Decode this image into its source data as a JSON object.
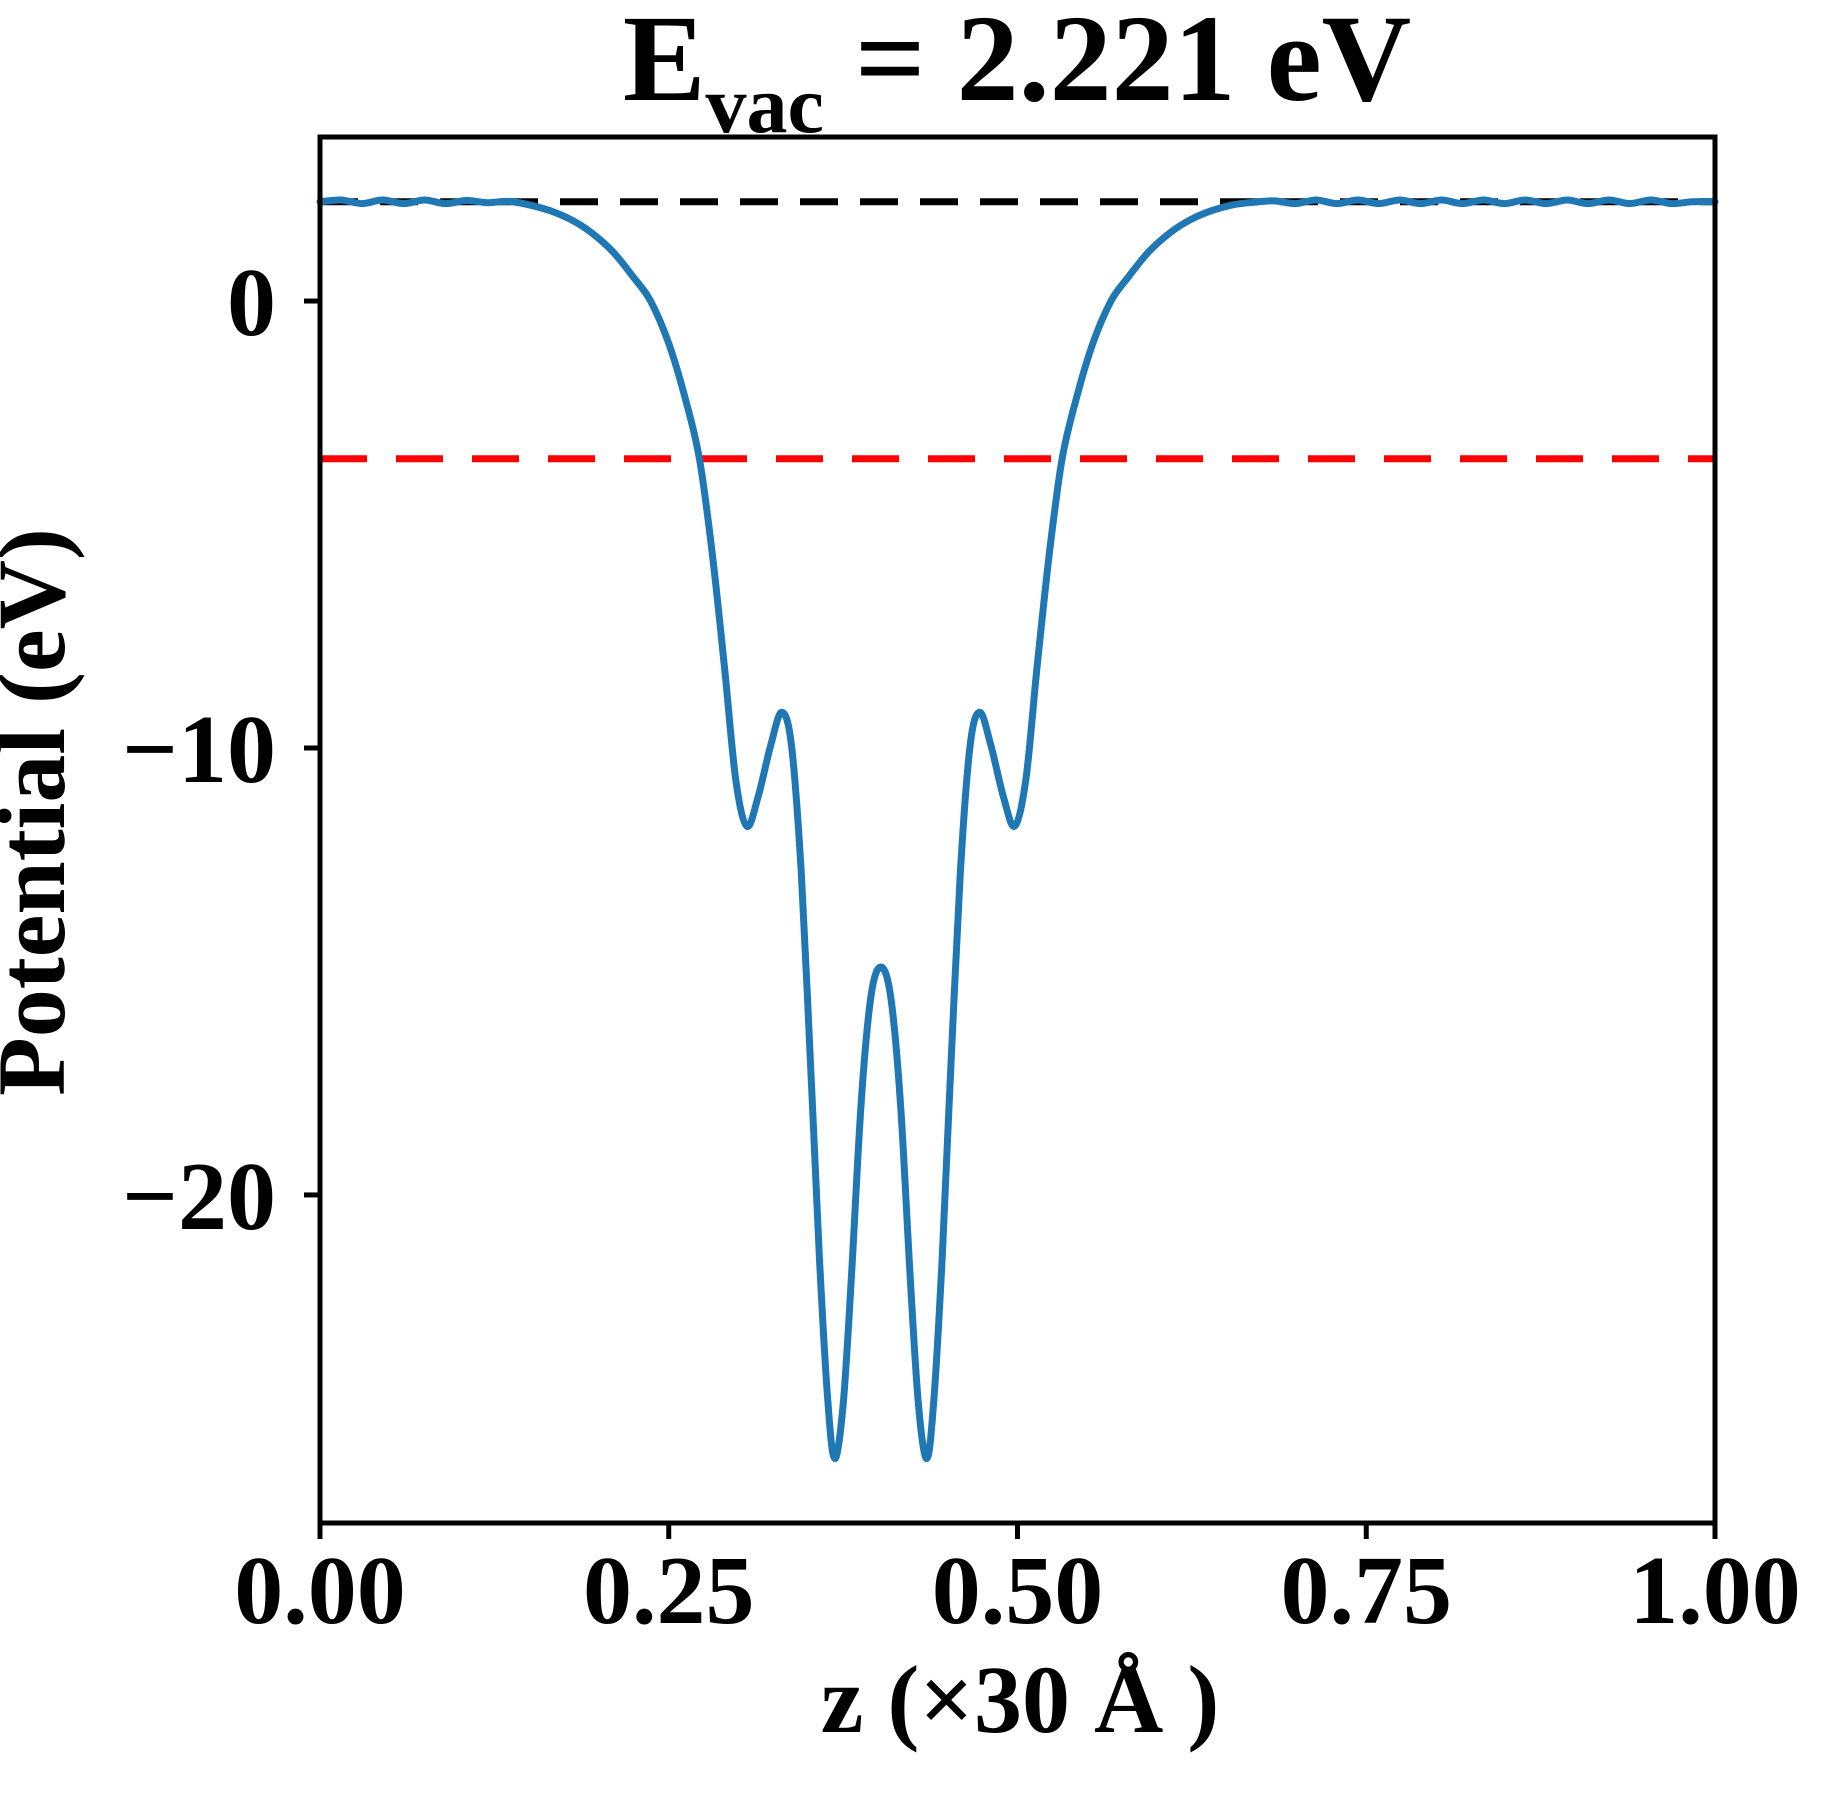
{
  "figure": {
    "title": {
      "prefix": "E",
      "subscript": "vac",
      "equals_value": " = 2.221 eV"
    },
    "xlabel": "z (×30 Å )",
    "ylabel": "Potential (eV)"
  },
  "chart_data": {
    "type": "line",
    "title": "E_vac = 2.221 eV",
    "xlabel": "z (×30 Å )",
    "ylabel": "Potential (eV)",
    "xlim": [
      0.0,
      1.0
    ],
    "ylim": [
      -27.34,
      3.67
    ],
    "grid": false,
    "legend": "none",
    "E_vac_eV": 2.221,
    "x_ticks": [
      {
        "v": 0.0,
        "label": "0.00"
      },
      {
        "v": 0.25,
        "label": "0.25"
      },
      {
        "v": 0.5,
        "label": "0.50"
      },
      {
        "v": 0.75,
        "label": "0.75"
      },
      {
        "v": 1.0,
        "label": "1.00"
      }
    ],
    "y_ticks": [
      {
        "v": 0,
        "label": "0"
      },
      {
        "v": -10,
        "label": "−10"
      },
      {
        "v": -20,
        "label": "−20"
      }
    ],
    "series": [
      {
        "name": "vacuum-level",
        "color": "#000000",
        "line_style": "dashed",
        "dash": [
          38,
          22
        ],
        "line_width": 7,
        "y_const": 2.221
      },
      {
        "name": "fermi-level",
        "color": "#ff0000",
        "line_style": "dashed",
        "dash": [
          47,
          29
        ],
        "line_width": 7,
        "y_const": -3.53
      },
      {
        "name": "planar-averaged-potential",
        "color": "#1f77b4",
        "line_style": "solid",
        "line_width": 7,
        "x": [
          0.0,
          0.015,
          0.03,
          0.045,
          0.06,
          0.075,
          0.09,
          0.105,
          0.12,
          0.135,
          0.15,
          0.165,
          0.18,
          0.195,
          0.21,
          0.225,
          0.237,
          0.25,
          0.262,
          0.272,
          0.281,
          0.29,
          0.298,
          0.306,
          0.314,
          0.323,
          0.331,
          0.338,
          0.345,
          0.352,
          0.358,
          0.364,
          0.369,
          0.375,
          0.381,
          0.388,
          0.395,
          0.402,
          0.409,
          0.416,
          0.423,
          0.429,
          0.435,
          0.44,
          0.446,
          0.452,
          0.459,
          0.466,
          0.473,
          0.481,
          0.49,
          0.498,
          0.506,
          0.514,
          0.523,
          0.532,
          0.542,
          0.554,
          0.567,
          0.579,
          0.594,
          0.609,
          0.624,
          0.639,
          0.654,
          0.669,
          0.684,
          0.699,
          0.714,
          0.729,
          0.744,
          0.759,
          0.774,
          0.789,
          0.804,
          0.819,
          0.834,
          0.849,
          0.864,
          0.879,
          0.894,
          0.909,
          0.924,
          0.939,
          0.954,
          0.969,
          0.984,
          1.0
        ],
        "y": [
          2.22,
          2.26,
          2.18,
          2.26,
          2.18,
          2.26,
          2.18,
          2.25,
          2.2,
          2.23,
          2.15,
          2.02,
          1.82,
          1.52,
          1.1,
          0.52,
          0.0,
          -0.95,
          -2.2,
          -3.53,
          -5.6,
          -8.2,
          -10.7,
          -11.75,
          -11.1,
          -9.95,
          -9.2,
          -9.95,
          -12.8,
          -17.3,
          -21.4,
          -24.6,
          -25.9,
          -24.7,
          -21.8,
          -17.9,
          -15.55,
          -14.9,
          -15.55,
          -17.9,
          -21.8,
          -24.7,
          -25.9,
          -24.6,
          -21.4,
          -17.3,
          -12.8,
          -9.95,
          -9.2,
          -9.95,
          -11.1,
          -11.75,
          -10.7,
          -8.2,
          -5.6,
          -3.53,
          -2.2,
          -0.95,
          0.0,
          0.52,
          1.1,
          1.52,
          1.82,
          2.02,
          2.15,
          2.21,
          2.24,
          2.18,
          2.26,
          2.18,
          2.26,
          2.18,
          2.26,
          2.18,
          2.26,
          2.18,
          2.26,
          2.18,
          2.26,
          2.18,
          2.26,
          2.18,
          2.26,
          2.18,
          2.26,
          2.18,
          2.22,
          2.22
        ]
      }
    ]
  }
}
